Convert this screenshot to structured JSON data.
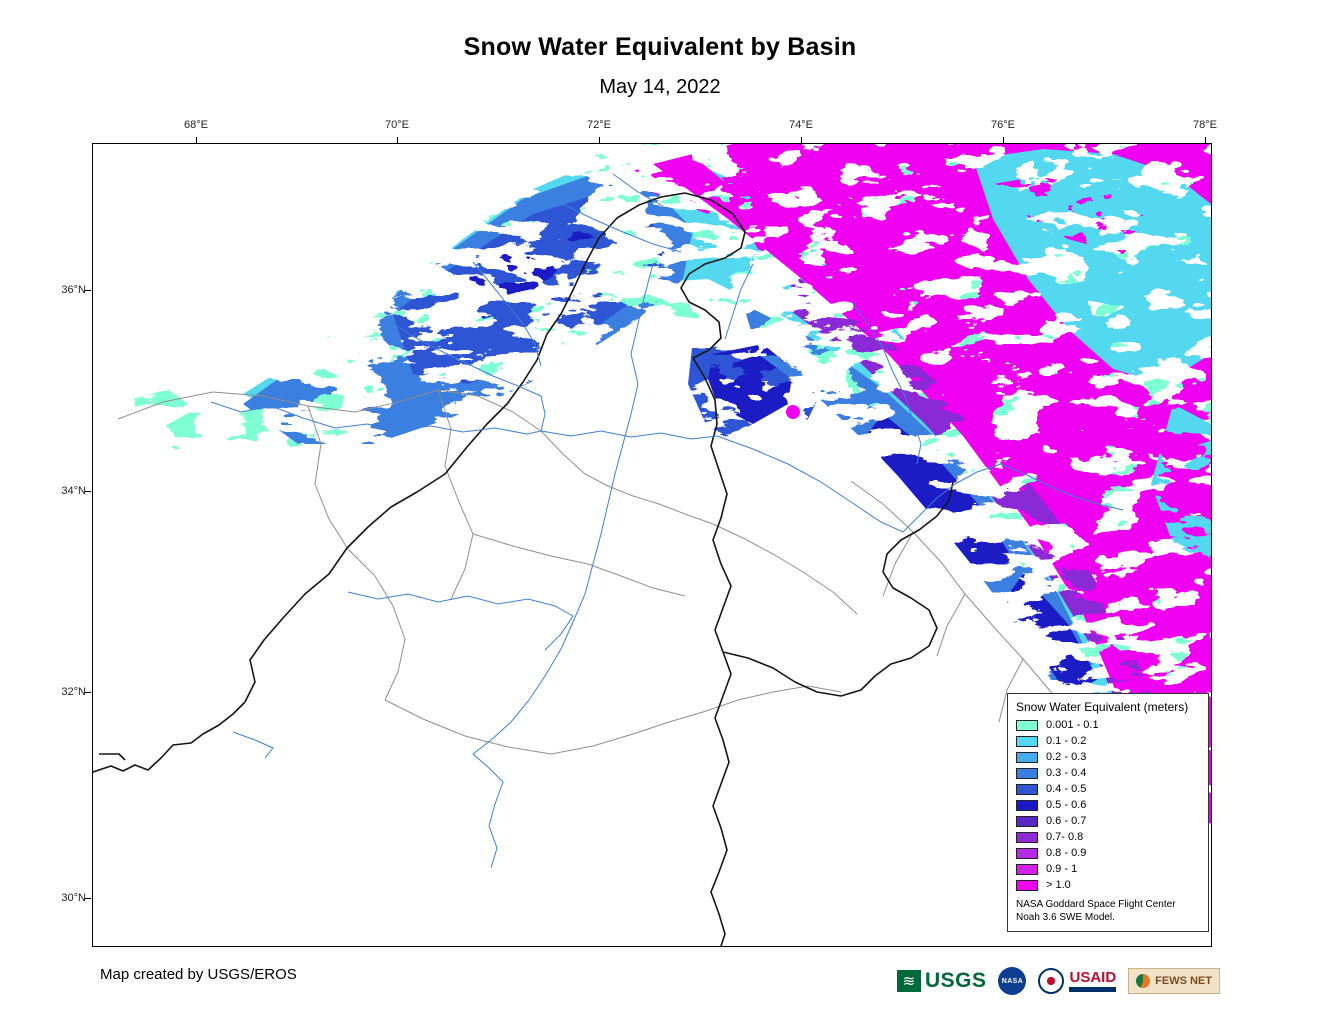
{
  "header": {
    "title": "Snow Water Equivalent by Basin",
    "date": "May 14, 2022"
  },
  "axes": {
    "top": [
      "68°E",
      "70°E",
      "72°E",
      "74°E",
      "76°E",
      "78°E"
    ],
    "left": [
      "36°N",
      "34°N",
      "32°N",
      "30°N"
    ]
  },
  "legend": {
    "title": "Snow Water Equivalent (meters)",
    "items": [
      {
        "label": "0.001 - 0.1",
        "color": "#7FFFD4"
      },
      {
        "label": "0.1 - 0.2",
        "color": "#52D8F0"
      },
      {
        "label": "0.2 - 0.3",
        "color": "#46ABEA"
      },
      {
        "label": "0.3 - 0.4",
        "color": "#3A7FE0"
      },
      {
        "label": "0.4 - 0.5",
        "color": "#2F55D4"
      },
      {
        "label": "0.5 - 0.6",
        "color": "#1A1AC4"
      },
      {
        "label": "0.6 - 0.7",
        "color": "#5A28C8"
      },
      {
        "label": "0.7- 0.8",
        "color": "#8A2BD6"
      },
      {
        "label": "0.8 - 0.9",
        "color": "#B12BE0"
      },
      {
        "label": "0.9 - 1",
        "color": "#D41FE8"
      },
      {
        "label": "> 1.0",
        "color": "#F000F0"
      }
    ],
    "note_line1": "NASA Goddard Space Flight Center",
    "note_line2": "Noah 3.6 SWE Model."
  },
  "footer": {
    "credit": "Map created by USGS/EROS",
    "logos": [
      "USGS",
      "NASA",
      "USAID",
      "FEWS NET"
    ]
  }
}
